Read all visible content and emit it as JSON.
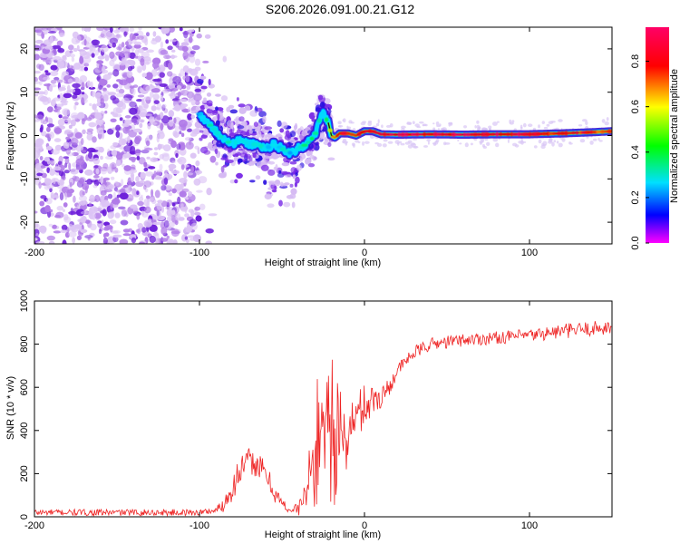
{
  "title": "S206.2026.091.00.21.G12",
  "chart_data": [
    {
      "type": "heatmap",
      "xlabel": "Height of straight line (km)",
      "ylabel": "Frequency (Hz)",
      "xlim": [
        -200,
        150
      ],
      "ylim": [
        -25,
        25
      ],
      "xticks": [
        -200,
        -100,
        0,
        100
      ],
      "yticks": [
        -20,
        -10,
        0,
        10,
        20
      ],
      "colorbar": {
        "label": "Normalized spectral amplitude",
        "range": [
          0,
          0.95
        ],
        "ticks": [
          "0.0",
          "0.2",
          "0.4",
          "0.6",
          "0.8"
        ],
        "colors": [
          "#ff00ff",
          "#0000ff",
          "#00e0ff",
          "#00ff00",
          "#ffff00",
          "#ff0000",
          "#ff0066"
        ]
      },
      "ridge": {
        "x": [
          -100,
          -95,
          -90,
          -85,
          -80,
          -75,
          -70,
          -65,
          -60,
          -55,
          -50,
          -45,
          -40,
          -35,
          -30,
          -27,
          -25,
          -22,
          -20,
          -18,
          -15,
          -10,
          -5,
          0,
          5,
          10,
          20,
          40,
          60,
          80,
          100,
          120,
          140,
          150
        ],
        "freq": [
          5,
          3,
          1,
          -1,
          -2,
          -1,
          -2,
          -2,
          -3,
          -2,
          -3,
          -4,
          -3,
          -2,
          0,
          4,
          5,
          3,
          0,
          -0.5,
          0.5,
          0.5,
          0,
          1,
          1,
          0.3,
          0.2,
          0.3,
          0.2,
          0.3,
          0.3,
          0.5,
          0.8,
          1.0
        ],
        "amplitude": [
          0.25,
          0.3,
          0.35,
          0.3,
          0.3,
          0.25,
          0.3,
          0.3,
          0.28,
          0.25,
          0.3,
          0.25,
          0.3,
          0.35,
          0.4,
          0.3,
          0.3,
          0.4,
          0.7,
          0.75,
          0.8,
          0.85,
          0.85,
          0.9,
          0.9,
          0.9,
          0.9,
          0.9,
          0.9,
          0.9,
          0.88,
          0.85,
          0.8,
          0.75
        ]
      },
      "noise_region_x": [
        -200,
        -100
      ]
    },
    {
      "type": "line",
      "xlabel": "Height of straight line (km)",
      "ylabel": "SNR (10 * v/v)",
      "xlim": [
        -200,
        150
      ],
      "ylim": [
        0,
        1000
      ],
      "xticks": [
        -200,
        -100,
        0,
        100
      ],
      "yticks": [
        0,
        200,
        400,
        600,
        800,
        1000
      ],
      "color": "#ee2222",
      "envelope": {
        "x": [
          -200,
          -100,
          -90,
          -85,
          -80,
          -75,
          -70,
          -65,
          -60,
          -55,
          -50,
          -45,
          -40,
          -35,
          -30,
          -25,
          -20,
          -15,
          -10,
          -5,
          0,
          5,
          10,
          15,
          20,
          30,
          40,
          60,
          80,
          100,
          120,
          150
        ],
        "mean": [
          20,
          20,
          30,
          60,
          140,
          220,
          260,
          240,
          200,
          120,
          60,
          30,
          40,
          120,
          300,
          450,
          500,
          300,
          380,
          460,
          520,
          540,
          560,
          600,
          680,
          760,
          800,
          820,
          830,
          840,
          860,
          880
        ],
        "spread": [
          15,
          15,
          15,
          40,
          70,
          70,
          60,
          60,
          60,
          50,
          30,
          15,
          30,
          80,
          200,
          300,
          350,
          250,
          150,
          120,
          100,
          80,
          60,
          40,
          30,
          30,
          30,
          30,
          30,
          30,
          35,
          35
        ]
      }
    }
  ]
}
